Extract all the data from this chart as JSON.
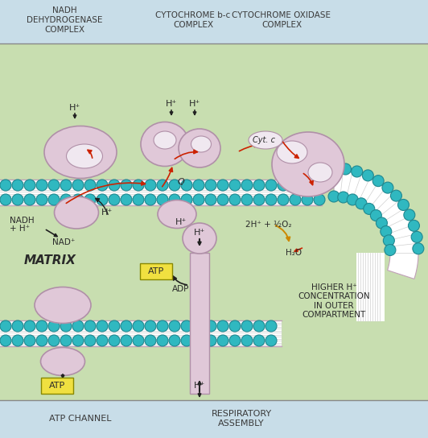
{
  "bg_main": "#c8deb0",
  "bg_header": "#c8dde8",
  "bg_footer": "#c8dde8",
  "membrane_color": "#e8d0e0",
  "membrane_border": "#c0a0b8",
  "bead_color": "#30b8c0",
  "bead_border": "#208890",
  "complex_fill": "#e0c8d8",
  "complex_stroke": "#b090a8",
  "inner_oval": "#f0e8f0",
  "arrow_red": "#cc2200",
  "arrow_dark": "#202020",
  "arrow_gold": "#cc8800",
  "text_dark": "#2a2a2a",
  "atp_box": "#f0e040",
  "h2o_arrow": "#cc2200",
  "header_text": "#3a3a3a",
  "title1": "NADH\nDEHYDROGENASE\nCOMPLEX",
  "title2": "CYTOCHROME b-c\nCOMPLEX",
  "title3": "CYTOCHROME OXIDASE\nCOMPLEX",
  "footer1": "ATP CHANNEL",
  "footer2": "RESPIRATORY\nASSEMBLY",
  "matrix_label": "MATRIX",
  "higher_h_label": "HIGHER H⁺\nCONCENTRATION\nIN OUTER\nCOMPARTMENT"
}
